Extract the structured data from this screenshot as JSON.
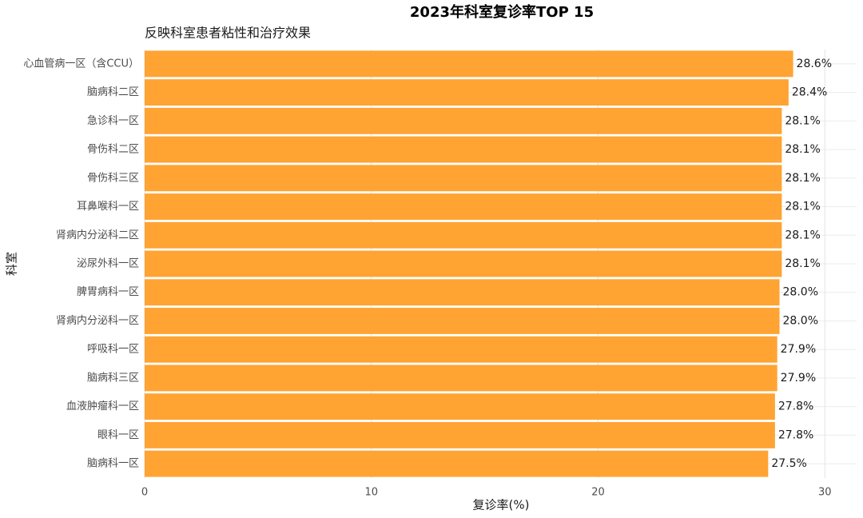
{
  "chart_data": {
    "type": "bar",
    "orientation": "horizontal",
    "title": "2023年科室复诊率TOP 15",
    "subtitle": "反映科室患者粘性和治疗效果",
    "x_label": "复诊率(%)",
    "y_label": "科室",
    "categories": [
      "心血管病一区（含CCU）",
      "脑病科二区",
      "急诊科一区",
      "骨伤科二区",
      "骨伤科三区",
      "耳鼻喉科一区",
      "肾病内分泌科二区",
      "泌尿外科一区",
      "脾胃病科一区",
      "肾病内分泌科一区",
      "呼吸科一区",
      "脑病科三区",
      "血液肿瘤科一区",
      "眼科一区",
      "脑病科一区"
    ],
    "values": [
      28.6,
      28.4,
      28.1,
      28.1,
      28.1,
      28.1,
      28.1,
      28.1,
      28.0,
      28.0,
      27.9,
      27.9,
      27.8,
      27.8,
      27.5
    ],
    "value_labels": [
      "28.6%",
      "28.4%",
      "28.1%",
      "28.1%",
      "28.1%",
      "28.1%",
      "28.1%",
      "28.1%",
      "28.0%",
      "28.0%",
      "27.9%",
      "27.9%",
      "27.8%",
      "27.8%",
      "27.5%"
    ],
    "color": "#ffa332",
    "xlim": [
      0,
      31.4
    ],
    "xticks": [
      0,
      10,
      20,
      30
    ],
    "grid": true
  }
}
